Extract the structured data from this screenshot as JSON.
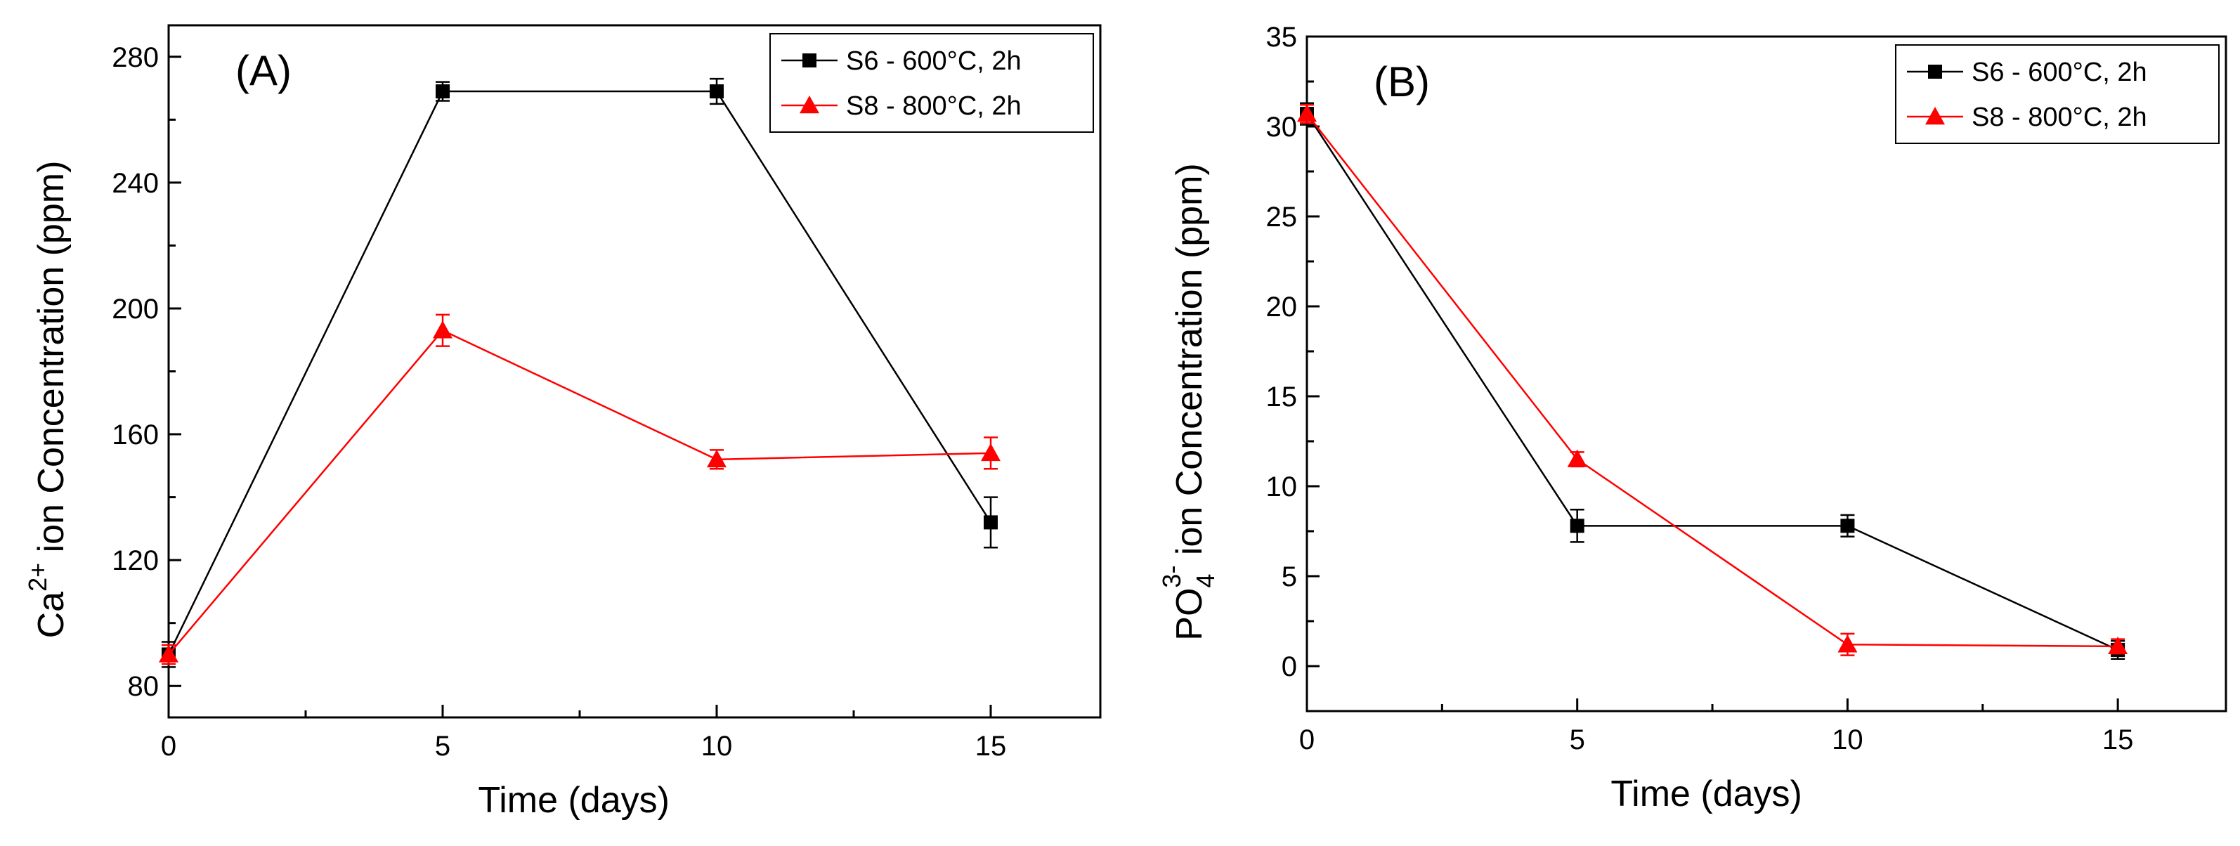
{
  "chart_data": [
    {
      "type": "line",
      "panel_label": "(A)",
      "xlabel": "Time (days)",
      "ylabel": {
        "species": "Ca",
        "charge": "2+",
        "rest": " ion Concentration (ppm)"
      },
      "xlim": [
        0,
        17
      ],
      "ylim": [
        70,
        290
      ],
      "x_ticks": [
        0,
        5,
        10,
        15
      ],
      "y_ticks": [
        80,
        120,
        160,
        200,
        240,
        280
      ],
      "legend_position": "top-right",
      "series": [
        {
          "name": "S6 - 600°C, 2h",
          "color": "#000000",
          "marker": "square",
          "x": [
            0,
            5,
            10,
            15
          ],
          "values": [
            90,
            269,
            269,
            132
          ],
          "errors": [
            4,
            3,
            4,
            8
          ]
        },
        {
          "name": "S8 - 800°C, 2h",
          "color": "#ff0000",
          "marker": "triangle",
          "x": [
            0,
            5,
            10,
            15
          ],
          "values": [
            90,
            193,
            152,
            154
          ],
          "errors": [
            3,
            5,
            3,
            5
          ]
        }
      ]
    },
    {
      "type": "line",
      "panel_label": "(B)",
      "xlabel": "Time (days)",
      "ylabel": {
        "species": "PO",
        "subscript": "4",
        "charge": "3-",
        "rest": " ion Concentration (ppm)"
      },
      "xlim": [
        0,
        17
      ],
      "ylim": [
        -2.5,
        35
      ],
      "x_ticks": [
        0,
        5,
        10,
        15
      ],
      "y_ticks": [
        0,
        5,
        10,
        15,
        20,
        25,
        30,
        35
      ],
      "legend_position": "top-right",
      "series": [
        {
          "name": "S6 - 600°C, 2h",
          "color": "#000000",
          "marker": "square",
          "x": [
            0,
            5,
            10,
            15
          ],
          "values": [
            30.7,
            7.8,
            7.8,
            0.9
          ],
          "errors": [
            0.6,
            0.9,
            0.6,
            0.5
          ]
        },
        {
          "name": "S8 - 800°C, 2h",
          "color": "#ff0000",
          "marker": "triangle",
          "x": [
            0,
            5,
            10,
            15
          ],
          "values": [
            30.7,
            11.5,
            1.2,
            1.1
          ],
          "errors": [
            0.5,
            0.4,
            0.6,
            0.4
          ]
        }
      ]
    }
  ]
}
